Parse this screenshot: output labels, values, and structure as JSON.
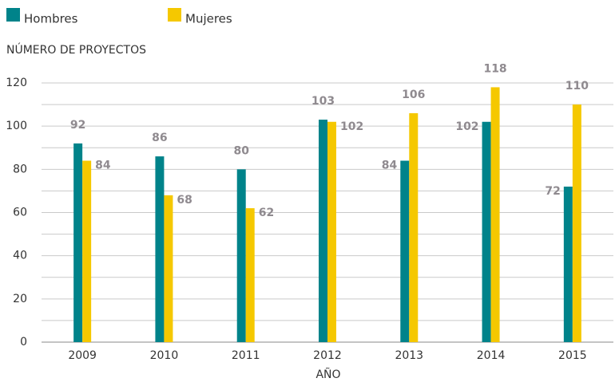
{
  "chart_data": {
    "type": "bar",
    "y_axis_label": "NÚMERO DE PROYECTOS",
    "x_axis_label": "AÑO",
    "categories": [
      "2009",
      "2010",
      "2011",
      "2012",
      "2013",
      "2014",
      "2015"
    ],
    "series": [
      {
        "name": "Hombres",
        "color": "#00838a",
        "values": [
          92,
          86,
          80,
          103,
          84,
          102,
          72
        ]
      },
      {
        "name": "Mujeres",
        "color": "#f5c800",
        "values": [
          84,
          68,
          62,
          102,
          106,
          118,
          110
        ]
      }
    ],
    "ylim": [
      0,
      120
    ],
    "yticks": [
      0,
      20,
      40,
      60,
      80,
      100,
      120
    ],
    "y_minor_ticks": [
      10,
      30,
      50,
      70,
      90,
      110
    ],
    "grid": true
  }
}
